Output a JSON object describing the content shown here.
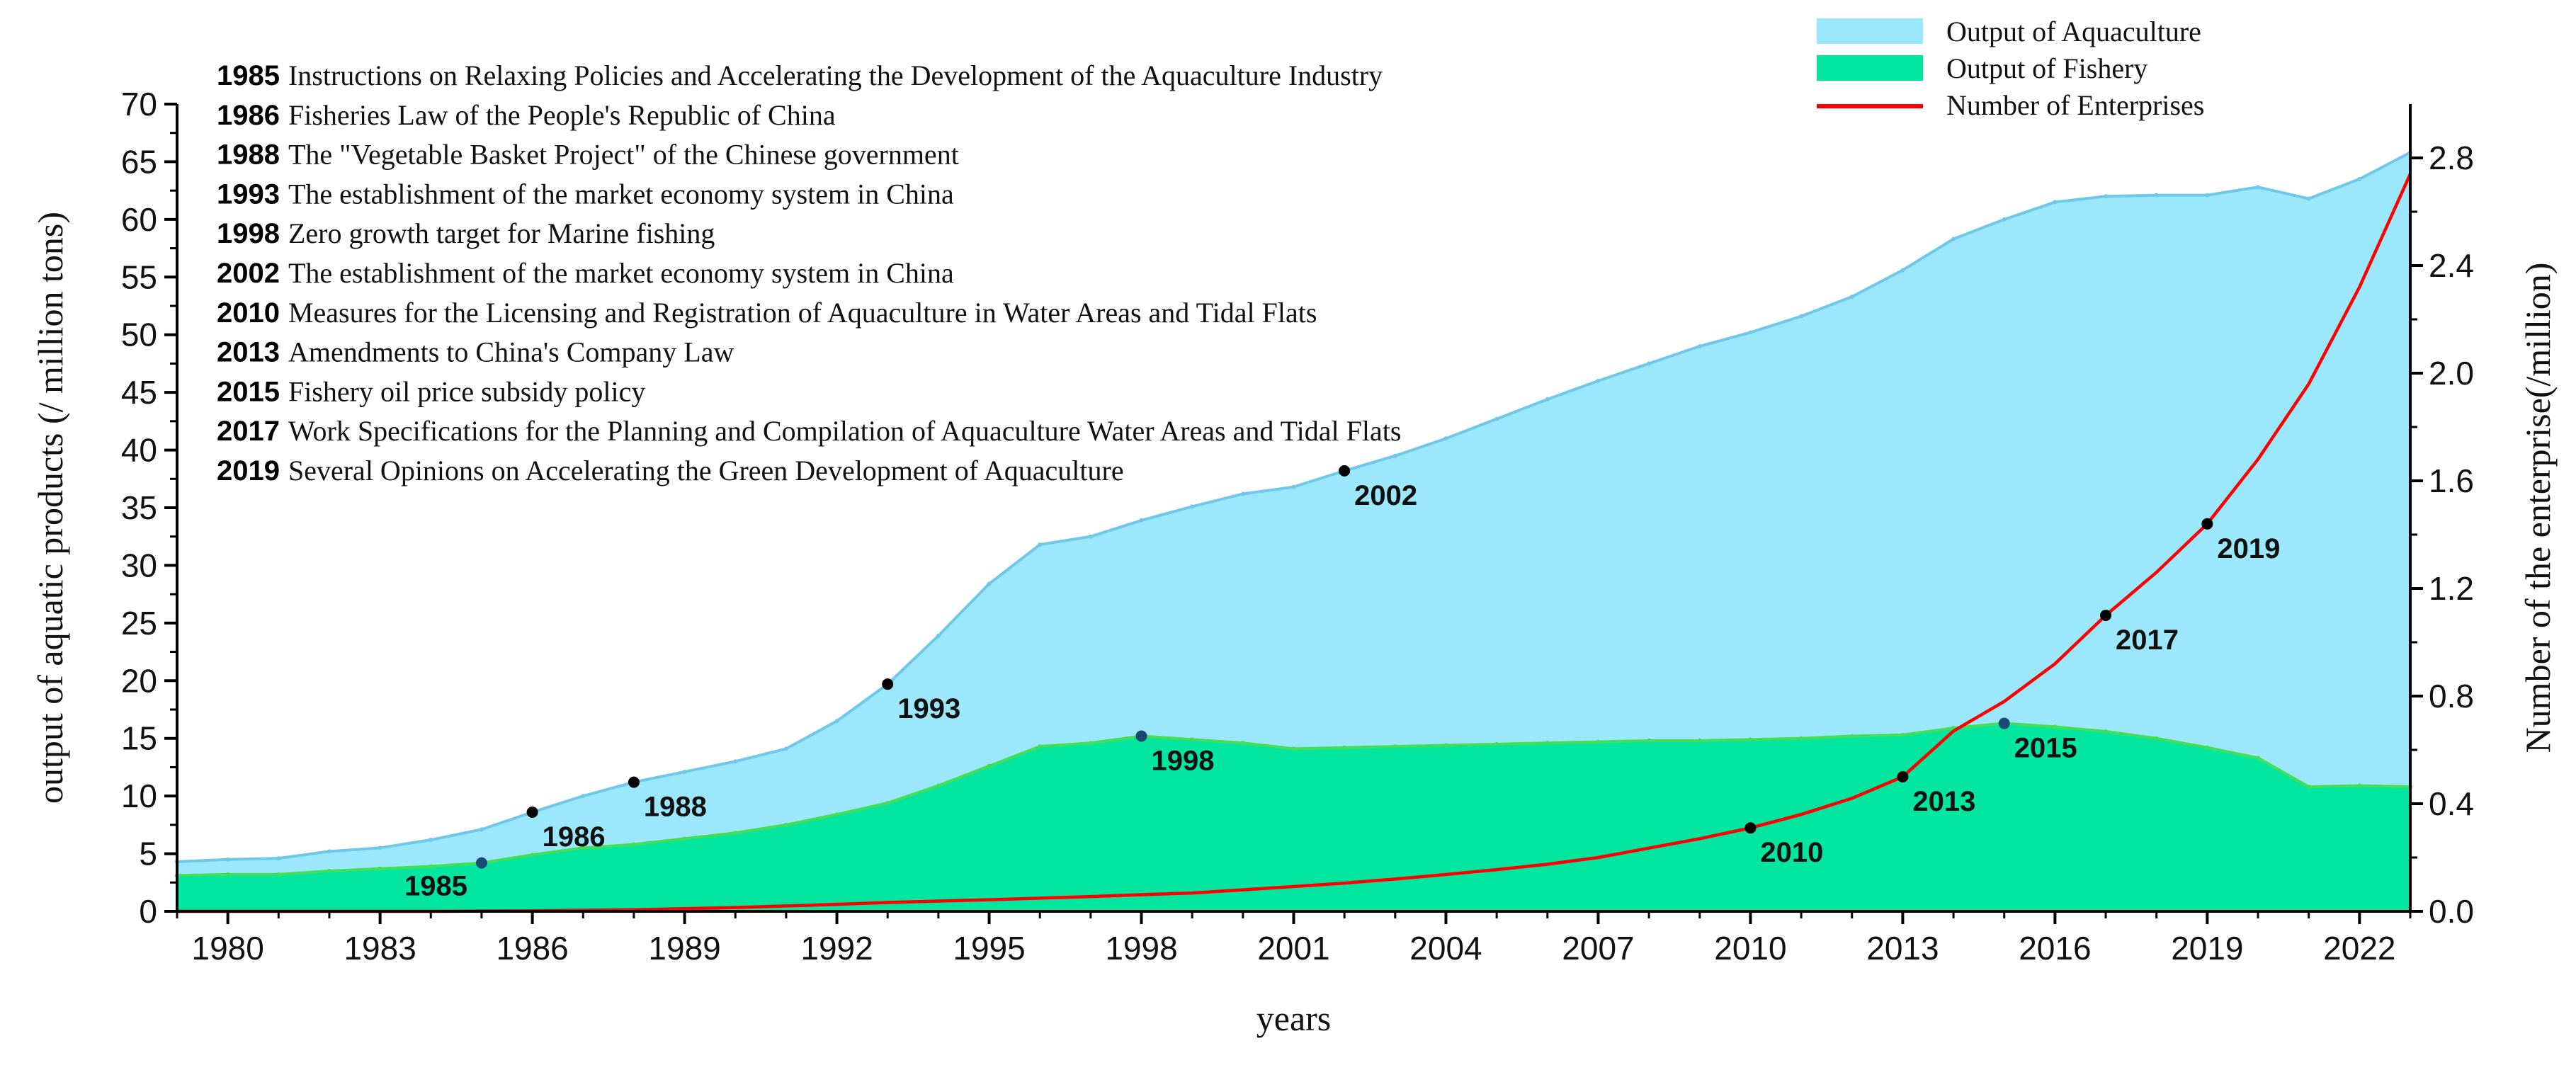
{
  "chart_data": {
    "type": "area",
    "title": "",
    "xlabel": "years",
    "ylabel": "output of aquatic products (/ million tons)",
    "y2label": "Number of the enterprise(/million)",
    "xlim": [
      1979,
      2023
    ],
    "ylim": [
      0,
      70
    ],
    "y2lim": [
      0,
      3.0
    ],
    "x_ticks": [
      "1980",
      "1983",
      "1986",
      "1989",
      "1992",
      "1995",
      "1998",
      "2001",
      "2004",
      "2007",
      "2010",
      "2013",
      "2016",
      "2019",
      "2022"
    ],
    "y_ticks": [
      "0",
      "5",
      "10",
      "15",
      "20",
      "25",
      "30",
      "35",
      "40",
      "45",
      "50",
      "55",
      "60",
      "65",
      "70"
    ],
    "y2_ticks": [
      "0.0",
      "0.4",
      "0.8",
      "1.2",
      "1.6",
      "2.0",
      "2.4",
      "2.8"
    ],
    "legend_position": "top-right",
    "x": [
      1979,
      1980,
      1981,
      1982,
      1983,
      1984,
      1985,
      1986,
      1987,
      1988,
      1989,
      1990,
      1991,
      1992,
      1993,
      1994,
      1995,
      1996,
      1997,
      1998,
      1999,
      2000,
      2001,
      2002,
      2003,
      2004,
      2005,
      2006,
      2007,
      2008,
      2009,
      2010,
      2011,
      2012,
      2013,
      2014,
      2015,
      2016,
      2017,
      2018,
      2019,
      2020,
      2021,
      2022,
      2023
    ],
    "series": [
      {
        "name": "Output of Aquaculture",
        "color": "#9be8fc",
        "edge_color": "#6fc8ea",
        "axis": "left",
        "values": [
          4.3,
          4.5,
          4.6,
          5.2,
          5.5,
          6.2,
          7.1,
          8.6,
          10.0,
          11.2,
          12.1,
          13.0,
          14.1,
          16.5,
          19.7,
          23.9,
          28.4,
          31.8,
          32.5,
          33.9,
          35.1,
          36.2,
          36.8,
          38.2,
          39.5,
          41.0,
          42.7,
          44.4,
          46.0,
          47.5,
          49.0,
          50.2,
          51.6,
          53.3,
          55.6,
          58.3,
          60.0,
          61.5,
          62.0,
          62.1,
          62.1,
          62.8,
          61.8,
          63.5,
          65.8
        ]
      },
      {
        "name": "Output of Fishery",
        "color": "#03e69f",
        "edge_color": "#44dd55",
        "axis": "left",
        "values": [
          3.1,
          3.2,
          3.2,
          3.5,
          3.7,
          3.9,
          4.2,
          4.9,
          5.5,
          5.8,
          6.3,
          6.8,
          7.5,
          8.4,
          9.4,
          10.9,
          12.6,
          14.3,
          14.6,
          15.2,
          14.9,
          14.6,
          14.1,
          14.2,
          14.3,
          14.4,
          14.5,
          14.6,
          14.7,
          14.8,
          14.8,
          14.9,
          15.0,
          15.2,
          15.3,
          15.9,
          16.3,
          16.0,
          15.6,
          15.0,
          14.2,
          13.3,
          10.8,
          10.9,
          10.8
        ]
      },
      {
        "name": "Number of Enterprises",
        "color": "#ff0000",
        "axis": "right",
        "values": [
          0.0,
          0.0,
          0.0,
          0.0,
          0.0,
          0.0,
          0.001,
          0.002,
          0.004,
          0.006,
          0.01,
          0.014,
          0.02,
          0.026,
          0.033,
          0.038,
          0.043,
          0.049,
          0.055,
          0.062,
          0.068,
          0.08,
          0.092,
          0.105,
          0.12,
          0.137,
          0.155,
          0.175,
          0.2,
          0.235,
          0.27,
          0.31,
          0.36,
          0.42,
          0.5,
          0.67,
          0.78,
          0.92,
          1.1,
          1.26,
          1.44,
          1.68,
          1.96,
          2.32,
          2.74
        ]
      }
    ],
    "markers": [
      {
        "year": 1985,
        "label": "1985",
        "series": "Output of Fishery",
        "value": 4.2,
        "color": "#1a4a73",
        "anchor": "below-left"
      },
      {
        "year": 1986,
        "label": "1986",
        "series": "Output of Aquaculture",
        "value": 8.6,
        "color": "#000000",
        "anchor": "below-right"
      },
      {
        "year": 1988,
        "label": "1988",
        "series": "Output of Aquaculture",
        "value": 11.2,
        "color": "#000000",
        "anchor": "below-right"
      },
      {
        "year": 1993,
        "label": "1993",
        "series": "Output of Aquaculture",
        "value": 19.7,
        "color": "#000000",
        "anchor": "below-right"
      },
      {
        "year": 1998,
        "label": "1998",
        "series": "Output of Fishery",
        "value": 15.2,
        "color": "#1a4a73",
        "anchor": "below-right"
      },
      {
        "year": 2002,
        "label": "2002",
        "series": "Output of Aquaculture",
        "value": 38.2,
        "color": "#000000",
        "anchor": "below-right"
      },
      {
        "year": 2010,
        "label": "2010",
        "series": "Number of Enterprises",
        "value": 0.31,
        "color": "#000000",
        "anchor": "below-right"
      },
      {
        "year": 2013,
        "label": "2013",
        "series": "Number of Enterprises",
        "value": 0.5,
        "color": "#000000",
        "anchor": "below-right"
      },
      {
        "year": 2015,
        "label": "2015",
        "series": "Output of Fishery",
        "value": 16.3,
        "color": "#1a4a73",
        "anchor": "below-right"
      },
      {
        "year": 2017,
        "label": "2017",
        "series": "Number of Enterprises",
        "value": 1.1,
        "color": "#000000",
        "anchor": "below-right"
      },
      {
        "year": 2019,
        "label": "2019",
        "series": "Number of Enterprises",
        "value": 1.44,
        "color": "#000000",
        "anchor": "below-right"
      }
    ],
    "annotations": [
      {
        "year": "1985",
        "text": "Instructions on Relaxing Policies and Accelerating the Development of the Aquaculture Industry"
      },
      {
        "year": "1986",
        "text": "Fisheries Law of the People's Republic of China"
      },
      {
        "year": "1988",
        "text": "The \"Vegetable Basket Project\" of the Chinese government"
      },
      {
        "year": "1993",
        "text": "The establishment of the market economy system in China"
      },
      {
        "year": "1998",
        "text": "Zero growth target for Marine fishing"
      },
      {
        "year": "2002",
        "text": "The establishment of the market economy system in China"
      },
      {
        "year": "2010",
        "text": "Measures for the Licensing and Registration of Aquaculture in Water Areas and Tidal Flats"
      },
      {
        "year": "2013",
        "text": "Amendments to China's Company Law"
      },
      {
        "year": "2015",
        "text": "Fishery oil price subsidy policy"
      },
      {
        "year": "2017",
        "text": "Work Specifications for the Planning and Compilation of  Aquaculture Water Areas and Tidal Flats"
      },
      {
        "year": "2019",
        "text": "Several Opinions on Accelerating the Green Development of Aquaculture"
      }
    ]
  }
}
